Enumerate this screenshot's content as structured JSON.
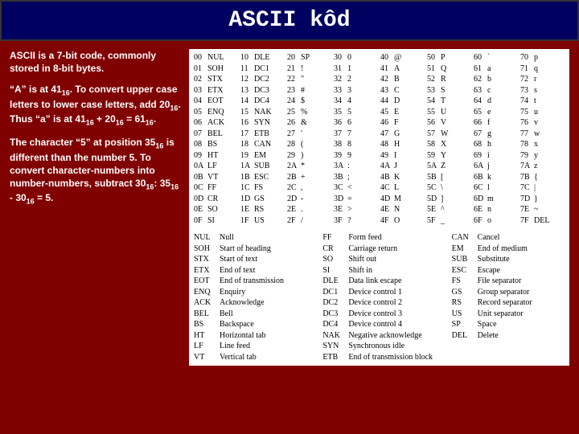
{
  "title": "ASCII kôd",
  "paragraphs": {
    "p1": "ASCII is a 7-bit code, commonly stored in 8-bit bytes.",
    "p2_html": "“A” is at 41<sub>16</sub>. To convert upper case letters to lower case letters, add 20<sub>16</sub>. Thus “a” is at 41<sub>16</sub> + 20<sub>16</sub> = 61<sub>16</sub>.",
    "p3_html": "The character “5” at position 35<sub>16</sub> is different than the number 5. To convert character-numbers into number-numbers, subtract 30<sub>16</sub>: 35<sub>16</sub> - 30<sub>16</sub> = 5."
  },
  "ascii_columns": [
    [
      [
        "00",
        "NUL"
      ],
      [
        "01",
        "SOH"
      ],
      [
        "02",
        "STX"
      ],
      [
        "03",
        "ETX"
      ],
      [
        "04",
        "EOT"
      ],
      [
        "05",
        "ENQ"
      ],
      [
        "06",
        "ACK"
      ],
      [
        "07",
        "BEL"
      ],
      [
        "08",
        "BS"
      ],
      [
        "09",
        "HT"
      ],
      [
        "0A",
        "LF"
      ],
      [
        "0B",
        "VT"
      ],
      [
        "0C",
        "FF"
      ],
      [
        "0D",
        "CR"
      ],
      [
        "0E",
        "SO"
      ],
      [
        "0F",
        "SI"
      ]
    ],
    [
      [
        "10",
        "DLE"
      ],
      [
        "11",
        "DC1"
      ],
      [
        "12",
        "DC2"
      ],
      [
        "13",
        "DC3"
      ],
      [
        "14",
        "DC4"
      ],
      [
        "15",
        "NAK"
      ],
      [
        "16",
        "SYN"
      ],
      [
        "17",
        "ETB"
      ],
      [
        "18",
        "CAN"
      ],
      [
        "19",
        "EM"
      ],
      [
        "1A",
        "SUB"
      ],
      [
        "1B",
        "ESC"
      ],
      [
        "1C",
        "FS"
      ],
      [
        "1D",
        "GS"
      ],
      [
        "1E",
        "RS"
      ],
      [
        "1F",
        "US"
      ]
    ],
    [
      [
        "20",
        "SP"
      ],
      [
        "21",
        "!"
      ],
      [
        "22",
        "\""
      ],
      [
        "23",
        "#"
      ],
      [
        "24",
        "$"
      ],
      [
        "25",
        "%"
      ],
      [
        "26",
        "&"
      ],
      [
        "27",
        "'"
      ],
      [
        "28",
        "("
      ],
      [
        "29",
        ")"
      ],
      [
        "2A",
        "*"
      ],
      [
        "2B",
        "+"
      ],
      [
        "2C",
        ","
      ],
      [
        "2D",
        "-"
      ],
      [
        "2E",
        "."
      ],
      [
        "2F",
        "/"
      ]
    ],
    [
      [
        "30",
        "0"
      ],
      [
        "31",
        "1"
      ],
      [
        "32",
        "2"
      ],
      [
        "33",
        "3"
      ],
      [
        "34",
        "4"
      ],
      [
        "35",
        "5"
      ],
      [
        "36",
        "6"
      ],
      [
        "37",
        "7"
      ],
      [
        "38",
        "8"
      ],
      [
        "39",
        "9"
      ],
      [
        "3A",
        ":"
      ],
      [
        "3B",
        ";"
      ],
      [
        "3C",
        "<"
      ],
      [
        "3D",
        "="
      ],
      [
        "3E",
        ">"
      ],
      [
        "3F",
        "?"
      ]
    ],
    [
      [
        "40",
        "@"
      ],
      [
        "41",
        "A"
      ],
      [
        "42",
        "B"
      ],
      [
        "43",
        "C"
      ],
      [
        "44",
        "D"
      ],
      [
        "45",
        "E"
      ],
      [
        "46",
        "F"
      ],
      [
        "47",
        "G"
      ],
      [
        "48",
        "H"
      ],
      [
        "49",
        "I"
      ],
      [
        "4A",
        "J"
      ],
      [
        "4B",
        "K"
      ],
      [
        "4C",
        "L"
      ],
      [
        "4D",
        "M"
      ],
      [
        "4E",
        "N"
      ],
      [
        "4F",
        "O"
      ]
    ],
    [
      [
        "50",
        "P"
      ],
      [
        "51",
        "Q"
      ],
      [
        "52",
        "R"
      ],
      [
        "53",
        "S"
      ],
      [
        "54",
        "T"
      ],
      [
        "55",
        "U"
      ],
      [
        "56",
        "V"
      ],
      [
        "57",
        "W"
      ],
      [
        "58",
        "X"
      ],
      [
        "59",
        "Y"
      ],
      [
        "5A",
        "Z"
      ],
      [
        "5B",
        "["
      ],
      [
        "5C",
        "\\"
      ],
      [
        "5D",
        "]"
      ],
      [
        "5E",
        "^"
      ],
      [
        "5F",
        "_"
      ]
    ],
    [
      [
        "60",
        "`"
      ],
      [
        "61",
        "a"
      ],
      [
        "62",
        "b"
      ],
      [
        "63",
        "c"
      ],
      [
        "64",
        "d"
      ],
      [
        "65",
        "e"
      ],
      [
        "66",
        "f"
      ],
      [
        "67",
        "g"
      ],
      [
        "68",
        "h"
      ],
      [
        "69",
        "i"
      ],
      [
        "6A",
        "j"
      ],
      [
        "6B",
        "k"
      ],
      [
        "6C",
        "l"
      ],
      [
        "6D",
        "m"
      ],
      [
        "6E",
        "n"
      ],
      [
        "6F",
        "o"
      ]
    ],
    [
      [
        "70",
        "p"
      ],
      [
        "71",
        "q"
      ],
      [
        "72",
        "r"
      ],
      [
        "73",
        "s"
      ],
      [
        "74",
        "t"
      ],
      [
        "75",
        "u"
      ],
      [
        "76",
        "v"
      ],
      [
        "77",
        "w"
      ],
      [
        "78",
        "x"
      ],
      [
        "79",
        "y"
      ],
      [
        "7A",
        "z"
      ],
      [
        "7B",
        "{"
      ],
      [
        "7C",
        "|"
      ],
      [
        "7D",
        "}"
      ],
      [
        "7E",
        "~"
      ],
      [
        "7F",
        "DEL"
      ]
    ]
  ],
  "legend_columns": [
    [
      [
        "NUL",
        "Null"
      ],
      [
        "SOH",
        "Start of heading"
      ],
      [
        "STX",
        "Start of text"
      ],
      [
        "ETX",
        "End of text"
      ],
      [
        "EOT",
        "End of transmission"
      ],
      [
        "ENQ",
        "Enquiry"
      ],
      [
        "ACK",
        "Acknowledge"
      ],
      [
        "BEL",
        "Bell"
      ],
      [
        "BS",
        "Backspace"
      ],
      [
        "HT",
        "Horizontal tab"
      ],
      [
        "LF",
        "Line feed"
      ],
      [
        "VT",
        "Vertical tab"
      ]
    ],
    [
      [
        "FF",
        "Form feed"
      ],
      [
        "CR",
        "Carriage return"
      ],
      [
        "SO",
        "Shift out"
      ],
      [
        "SI",
        "Shift in"
      ],
      [
        "DLE",
        "Data link escape"
      ],
      [
        "DC1",
        "Device control 1"
      ],
      [
        "DC2",
        "Device control 2"
      ],
      [
        "DC3",
        "Device control 3"
      ],
      [
        "DC4",
        "Device control 4"
      ],
      [
        "NAK",
        "Negative acknowledge"
      ],
      [
        "SYN",
        "Synchronous idle"
      ],
      [
        "ETB",
        "End of transmission block"
      ]
    ],
    [
      [
        "CAN",
        "Cancel"
      ],
      [
        "EM",
        "End of medium"
      ],
      [
        "SUB",
        "Substitute"
      ],
      [
        "ESC",
        "Escape"
      ],
      [
        "FS",
        "File separator"
      ],
      [
        "GS",
        "Group separator"
      ],
      [
        "RS",
        "Record separator"
      ],
      [
        "US",
        "Unit separator"
      ],
      [
        "SP",
        "Space"
      ],
      [
        "DEL",
        "Delete"
      ]
    ]
  ],
  "style": {
    "page_bg": "#800000",
    "title_bg": "#000060",
    "title_color": "#ffffff",
    "panel_bg": "#ffffff",
    "text_color_light": "#ffffff",
    "text_color_dark": "#000000",
    "title_fontsize": 28,
    "body_fontsize": 12,
    "table_fontsize": 10
  }
}
